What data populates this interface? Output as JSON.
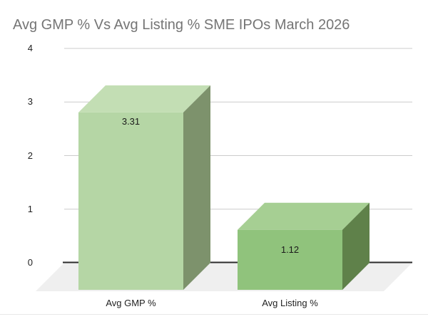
{
  "title": "Avg GMP % Vs Avg Listing % SME IPOs March 2026",
  "colors": {
    "title_text": "#757575",
    "axis_text": "#222222",
    "gridline": "#cccccc",
    "zero_line": "#2b2b2b",
    "floor": "#efefef",
    "background": "#ffffff",
    "bottom_divider": "#e8e8e8"
  },
  "chart_data": {
    "type": "bar",
    "projection": "3d",
    "title": "Avg GMP % Vs Avg Listing % SME IPOs March 2026",
    "categories": [
      "Avg GMP %",
      "Avg Listing %"
    ],
    "values": [
      3.31,
      1.12
    ],
    "value_labels": [
      "3.31",
      "1.12"
    ],
    "xlabel": "",
    "ylabel": "",
    "ylim": [
      0,
      4
    ],
    "y_ticks": [
      0,
      1,
      2,
      3,
      4
    ],
    "grid": true,
    "legend_position": "none",
    "bar_colors": [
      {
        "front": "#b5d6a5",
        "top": "#c3deb4",
        "side": "#7d926c"
      },
      {
        "front": "#90c37c",
        "top": "#a6cf93",
        "side": "#5f814a"
      }
    ]
  }
}
